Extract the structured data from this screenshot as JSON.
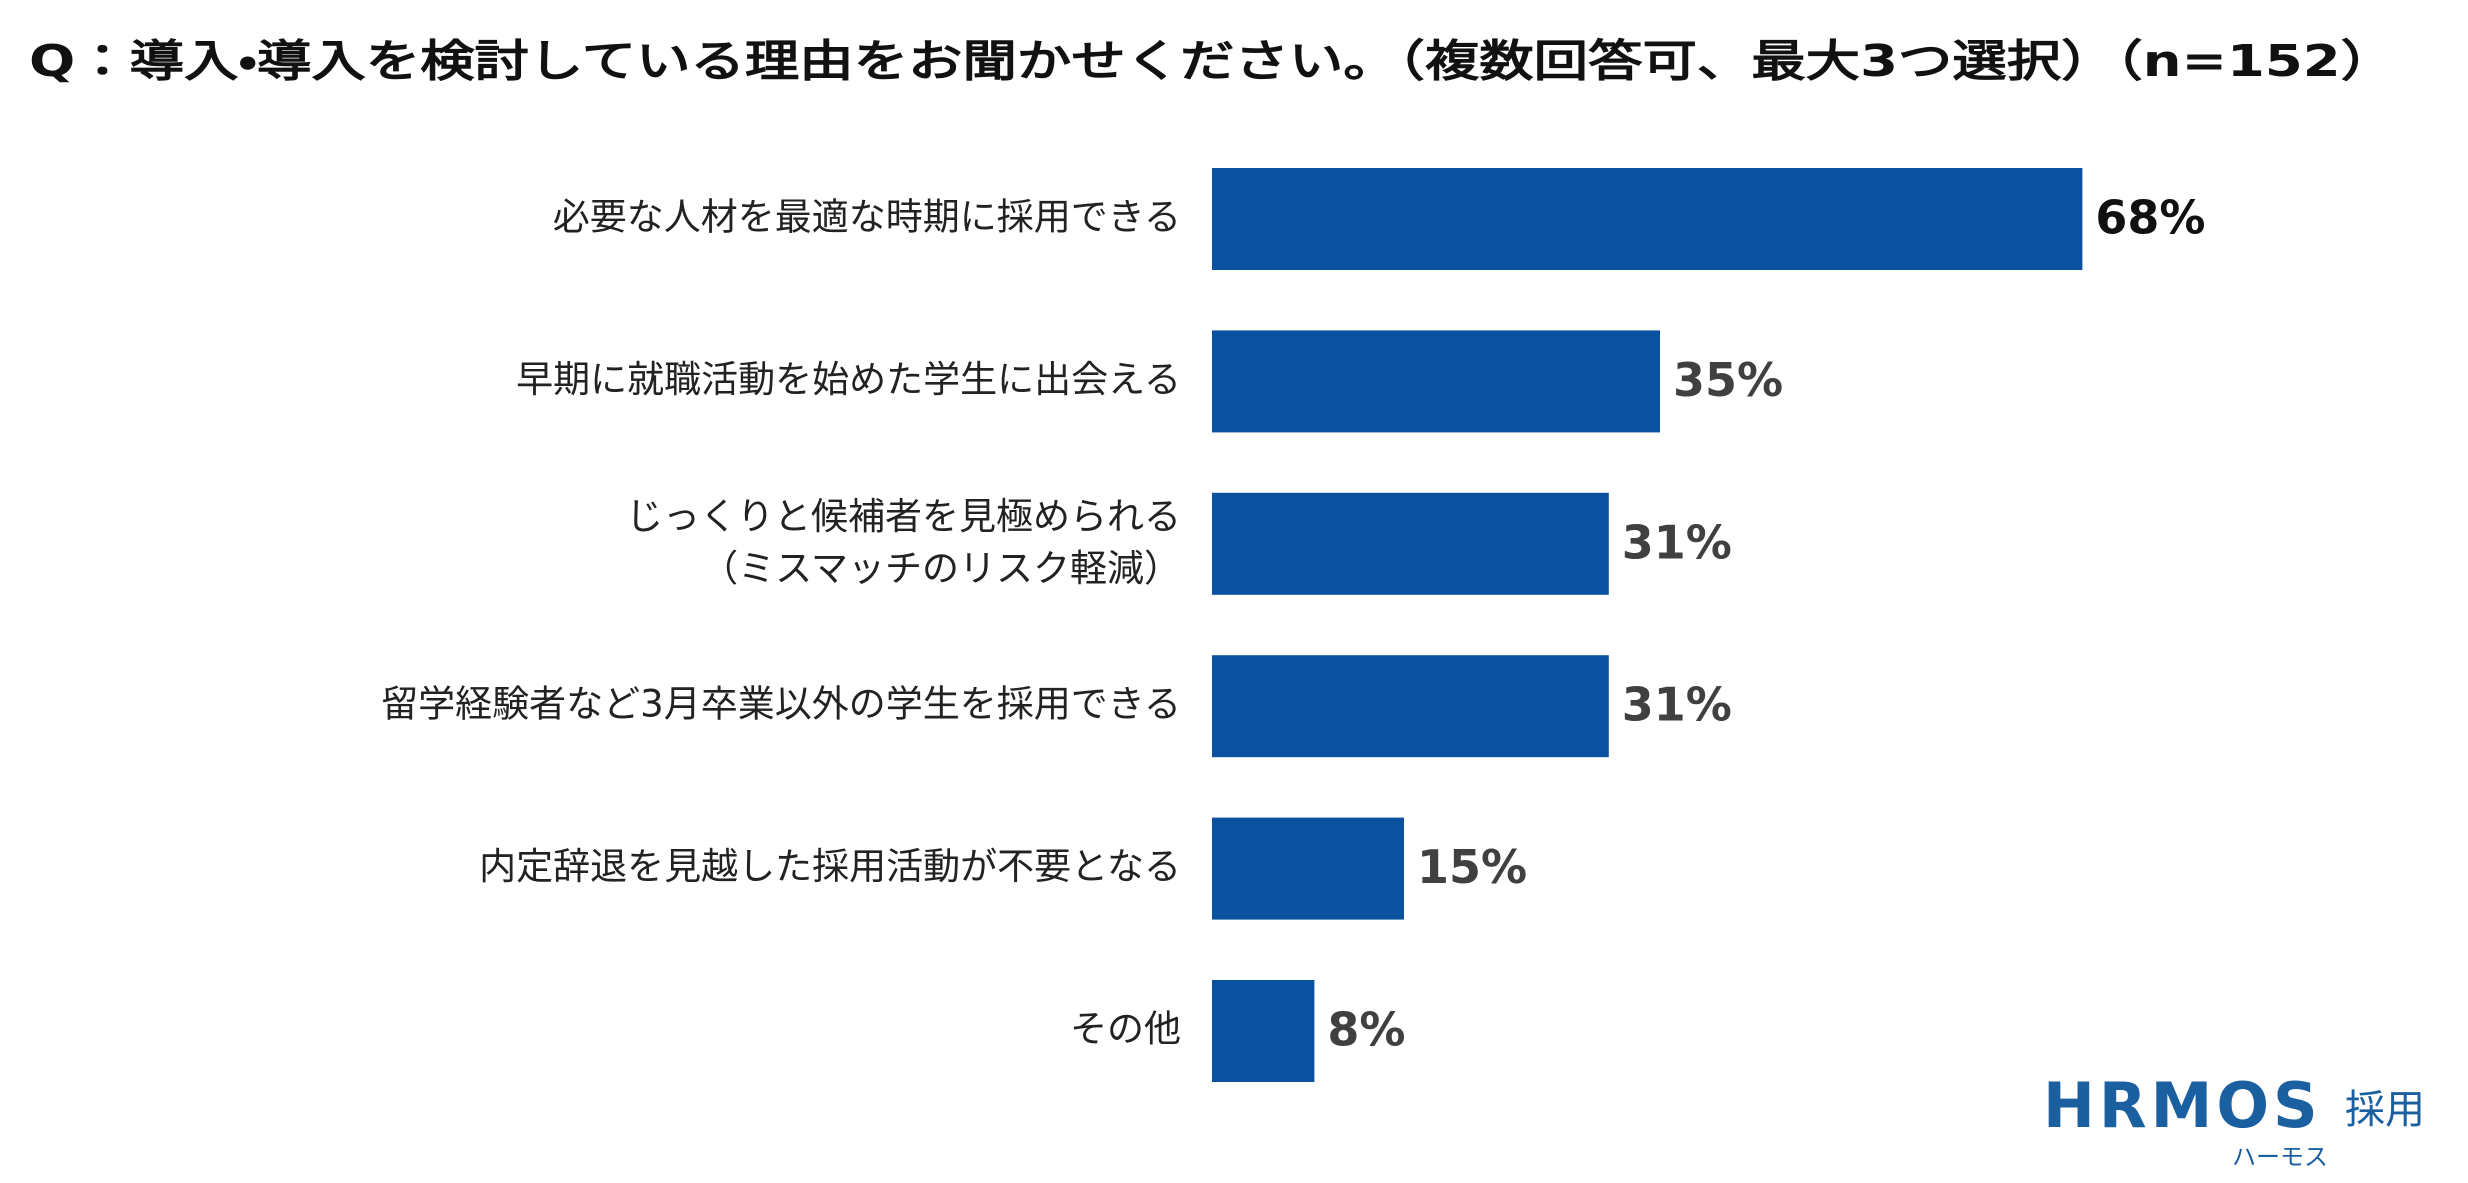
{
  "chart_data": {
    "type": "bar",
    "orientation": "horizontal",
    "title": "Q：導入・導入を検討している理由をお聞かせください。（複数回答可、最大3つ選択）（n=152）",
    "categories": [
      "必要な人材を最適な時期に採用できる",
      "早期に就職活動を始めた学生に出会える",
      "じっくりと候補者を見極められる\n（ミスマッチのリスク軽減）",
      "留学経験者など3月卒業以外の学生を採用できる",
      "内定辞退を見越した採用活動が不要となる",
      "その他"
    ],
    "values": [
      68,
      35,
      31,
      31,
      15,
      8
    ],
    "value_labels": [
      "68%",
      "35%",
      "31%",
      "31%",
      "15%",
      "8%"
    ],
    "color": "#0a52a0"
  },
  "brand": {
    "name": "HRMOS",
    "suffix": "採用",
    "reading": "ハーモス"
  }
}
